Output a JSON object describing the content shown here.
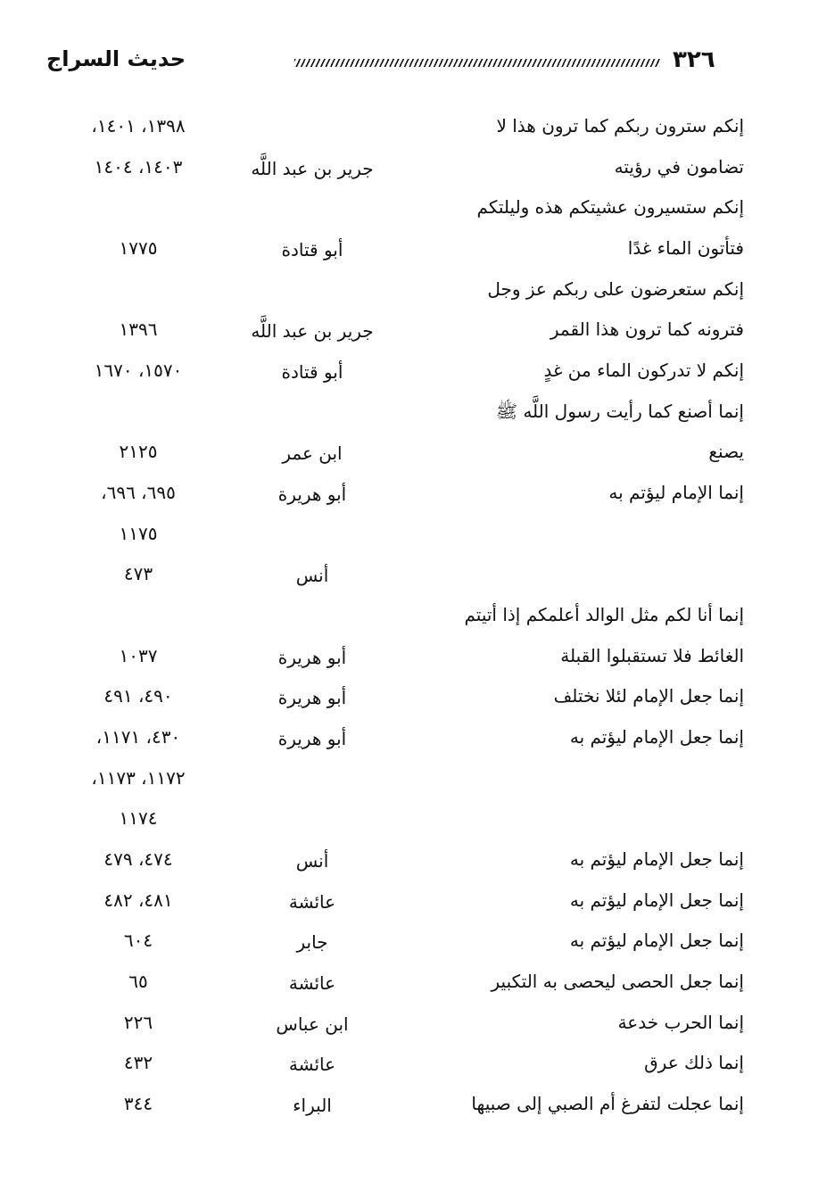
{
  "header": {
    "title": "حديث السراج",
    "page_number": "٣٢٦"
  },
  "rows": [
    {
      "text": "إنكم سترون ربكم كما ترون هذا لا",
      "narrator": "",
      "refs": "١٣٩٨، ١٤٠١،"
    },
    {
      "text": "تضامون في رؤيته",
      "narrator": "جرير بن عبد اللَّه",
      "refs": "١٤٠٣، ١٤٠٤"
    },
    {
      "text": "إنكم ستسيرون عشيتكم هذه وليلتكم",
      "narrator": "",
      "refs": ""
    },
    {
      "text": "فتأتون الماء غدًا",
      "narrator": "أبو قتادة",
      "refs": "١٧٧٥"
    },
    {
      "text": "إنكم ستعرضون على ربكم عز وجل",
      "narrator": "",
      "refs": ""
    },
    {
      "text": "فترونه كما ترون هذا القمر",
      "narrator": "جرير بن عبد اللَّه",
      "refs": "١٣٩٦"
    },
    {
      "text": "إنكم لا تدركون الماء من غدٍ",
      "narrator": "أبو قتادة",
      "refs": "١٥٧٠، ١٦٧٠"
    },
    {
      "text": "إنما أصنع كما رأيت رسول اللَّه ﷺ",
      "narrator": "",
      "refs": ""
    },
    {
      "text": "يصنع",
      "narrator": "ابن عمر",
      "refs": "٢١٢٥"
    },
    {
      "text": "إنما الإمام ليؤتم به",
      "narrator": "أبو هريرة",
      "refs": "٦٩٥، ٦٩٦،"
    },
    {
      "text": "",
      "narrator": "",
      "refs": "١١٧٥"
    },
    {
      "text": "",
      "narrator": "أنس",
      "refs": "٤٧٣"
    },
    {
      "text": "إنما أنا لكم مثل الوالد أعلمكم إذا أتيتم",
      "narrator": "",
      "refs": ""
    },
    {
      "text": "الغائط فلا تستقبلوا القبلة",
      "narrator": "أبو هريرة",
      "refs": "١٠٣٧"
    },
    {
      "text": "إنما جعل الإمام لئلا نختلف",
      "narrator": "أبو هريرة",
      "refs": "٤٩٠، ٤٩١"
    },
    {
      "text": "إنما جعل الإمام ليؤتم به",
      "narrator": "أبو هريرة",
      "refs": "٤٣٠، ١١٧١،"
    },
    {
      "text": "",
      "narrator": "",
      "refs": "١١٧٢، ١١٧٣،"
    },
    {
      "text": "",
      "narrator": "",
      "refs": "١١٧٤"
    },
    {
      "text": "إنما جعل الإمام ليؤتم به",
      "narrator": "أنس",
      "refs": "٤٧٤، ٤٧٩"
    },
    {
      "text": "إنما جعل الإمام ليؤتم به",
      "narrator": "عائشة",
      "refs": "٤٨١، ٤٨٢"
    },
    {
      "text": "إنما جعل الإمام ليؤتم به",
      "narrator": "جابر",
      "refs": "٦٠٤"
    },
    {
      "text": "إنما جعل الحصى ليحصى به التكبير",
      "narrator": "عائشة",
      "refs": "٦٥"
    },
    {
      "text": "إنما الحرب خدعة",
      "narrator": "ابن عباس",
      "refs": "٢٢٦"
    },
    {
      "text": "إنما ذلك عرق",
      "narrator": "عائشة",
      "refs": "٤٣٢"
    },
    {
      "text": "إنما عجلت لتفرغ أم الصبي إلى صبيها",
      "narrator": "البراء",
      "refs": "٣٤٤"
    }
  ]
}
